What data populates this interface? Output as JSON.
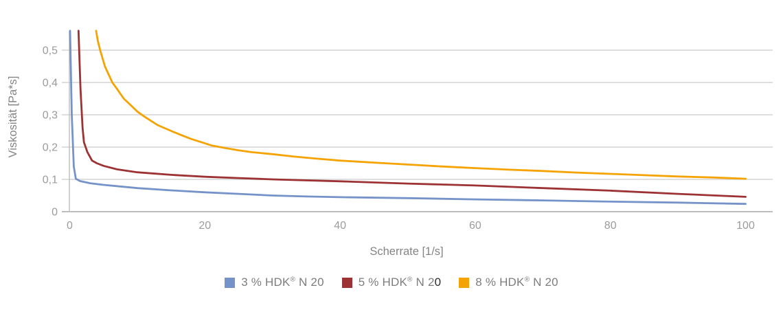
{
  "chart_data": {
    "type": "line",
    "title": "",
    "xlabel": "Scherrate [1/s]",
    "ylabel": "Viskosität [Pa*s]",
    "xlim": [
      0,
      100
    ],
    "ylim": [
      0,
      0.56
    ],
    "x_ticks": [
      0,
      20,
      40,
      60,
      80,
      100
    ],
    "y_ticks": [
      0,
      0.1,
      0.2,
      0.3,
      0.4,
      0.5
    ],
    "grid": "horizontal-only",
    "legend_position": "bottom",
    "series": [
      {
        "name": "3 % HDK® N 20",
        "color": "#7593C9",
        "points": [
          [
            0.05,
            0.56
          ],
          [
            0.3,
            0.3
          ],
          [
            0.6,
            0.14
          ],
          [
            0.9,
            0.102
          ],
          [
            1.5,
            0.095
          ],
          [
            3,
            0.088
          ],
          [
            5,
            0.083
          ],
          [
            8,
            0.077
          ],
          [
            10,
            0.073
          ],
          [
            15,
            0.066
          ],
          [
            20,
            0.06
          ],
          [
            25,
            0.055
          ],
          [
            30,
            0.05
          ],
          [
            35,
            0.047
          ],
          [
            40,
            0.045
          ],
          [
            50,
            0.042
          ],
          [
            60,
            0.038
          ],
          [
            70,
            0.035
          ],
          [
            80,
            0.031
          ],
          [
            90,
            0.028
          ],
          [
            100,
            0.024
          ]
        ]
      },
      {
        "name": "5 % HDK® N 20",
        "color": "#9C3234",
        "points": [
          [
            1.3,
            0.56
          ],
          [
            1.6,
            0.38
          ],
          [
            1.9,
            0.26
          ],
          [
            2.1,
            0.215
          ],
          [
            2.6,
            0.185
          ],
          [
            3.3,
            0.158
          ],
          [
            4,
            0.15
          ],
          [
            5,
            0.142
          ],
          [
            7,
            0.131
          ],
          [
            10,
            0.122
          ],
          [
            15,
            0.114
          ],
          [
            20,
            0.108
          ],
          [
            25,
            0.104
          ],
          [
            30,
            0.1
          ],
          [
            40,
            0.094
          ],
          [
            50,
            0.087
          ],
          [
            60,
            0.081
          ],
          [
            70,
            0.073
          ],
          [
            80,
            0.065
          ],
          [
            90,
            0.055
          ],
          [
            100,
            0.046
          ]
        ]
      },
      {
        "name": "8 % HDK® N 20",
        "color": "#F5A302",
        "points": [
          [
            3.9,
            0.56
          ],
          [
            4.15,
            0.53
          ],
          [
            4.5,
            0.5
          ],
          [
            5.2,
            0.45
          ],
          [
            6.3,
            0.4
          ],
          [
            7,
            0.38
          ],
          [
            8,
            0.35
          ],
          [
            9,
            0.33
          ],
          [
            10,
            0.31
          ],
          [
            11,
            0.295
          ],
          [
            13,
            0.268
          ],
          [
            15,
            0.25
          ],
          [
            16.5,
            0.237
          ],
          [
            18,
            0.225
          ],
          [
            19.5,
            0.215
          ],
          [
            21,
            0.205
          ],
          [
            23,
            0.197
          ],
          [
            25,
            0.19
          ],
          [
            27,
            0.184
          ],
          [
            30,
            0.178
          ],
          [
            33,
            0.171
          ],
          [
            36,
            0.165
          ],
          [
            40,
            0.158
          ],
          [
            45,
            0.152
          ],
          [
            50,
            0.146
          ],
          [
            55,
            0.14
          ],
          [
            60,
            0.135
          ],
          [
            65,
            0.13
          ],
          [
            70,
            0.126
          ],
          [
            75,
            0.121
          ],
          [
            80,
            0.117
          ],
          [
            85,
            0.113
          ],
          [
            90,
            0.109
          ],
          [
            95,
            0.106
          ],
          [
            100,
            0.102
          ]
        ]
      }
    ]
  },
  "axes": {
    "x_title": "Scherrate [1/s]",
    "y_title": "Viskosität [Pa*s]",
    "x_tick_labels": [
      "0",
      "20",
      "40",
      "60",
      "80",
      "100"
    ],
    "y_tick_labels": [
      "0",
      "0,1",
      "0,2",
      "0,3",
      "0,4",
      "0,5"
    ]
  },
  "legend": {
    "items": [
      {
        "swatch_color": "#7593C9",
        "text_main": "3 % HDK",
        "sup": "®",
        "text_tail": " N 2",
        "text_dark": "",
        "text_end": "0"
      },
      {
        "swatch_color": "#9C3234",
        "text_main": "5 % HDK",
        "sup": "®",
        "text_tail": " N 2",
        "text_dark": "0",
        "text_end": ""
      },
      {
        "swatch_color": "#F5A302",
        "text_main": "8 % HDK",
        "sup": "®",
        "text_tail": " N 2",
        "text_dark": "",
        "text_end": "0"
      }
    ]
  },
  "colors": {
    "background": "#ffffff",
    "gridline": "#d4d4d4",
    "axis_line": "#bdbdbd",
    "tick_label": "#9b9b9b",
    "axis_title": "#848484",
    "legend_text": "#7d7d7d",
    "legend_dark_char": "#2b2b2b"
  }
}
